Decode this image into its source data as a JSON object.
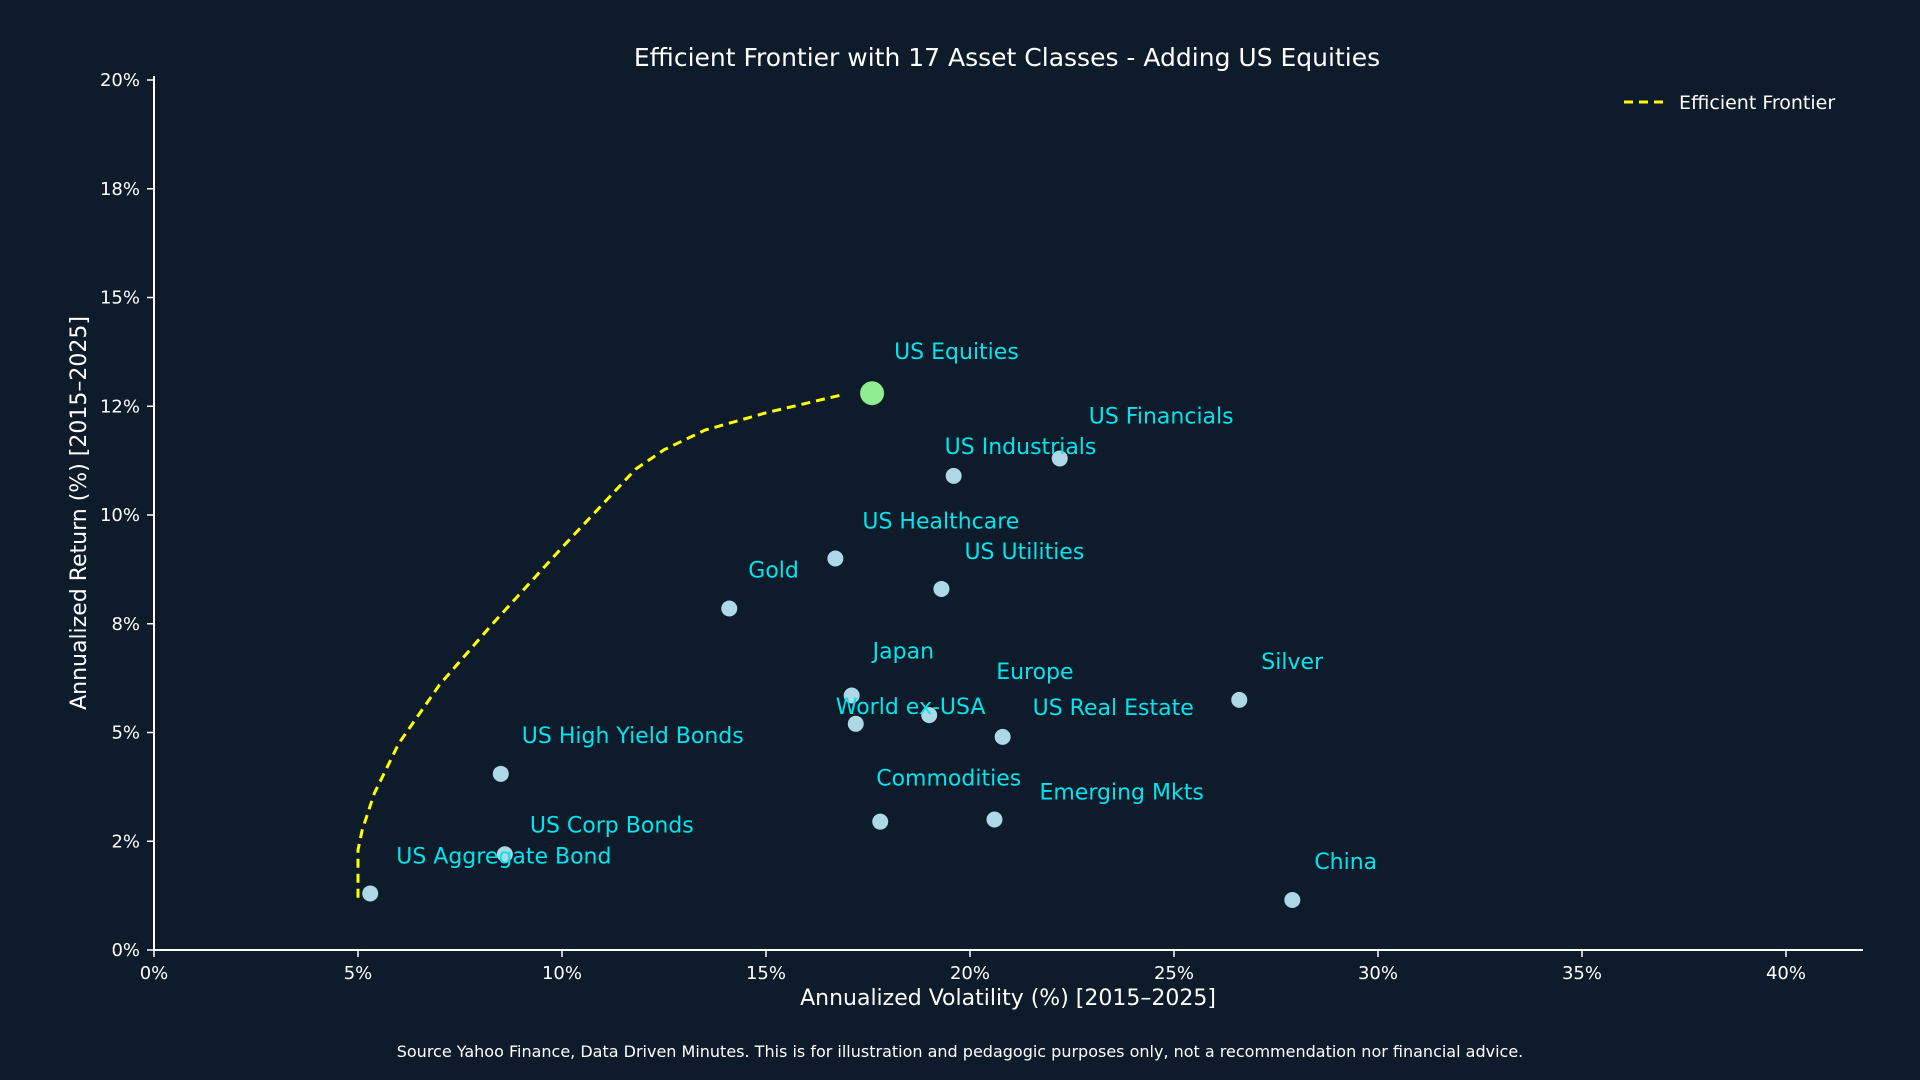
{
  "chart_data": {
    "type": "scatter",
    "title": "Efficient Frontier with 17 Asset Classes - Adding US Equities",
    "xlabel": "Annualized Volatility (%) [2015–2025]",
    "ylabel": "Annualized Return (%) [2015–2025]",
    "xlim": [
      0,
      42
    ],
    "ylim": [
      0,
      20.2
    ],
    "xticks": [
      0,
      5,
      10,
      15,
      20,
      25,
      30,
      35,
      40
    ],
    "xtick_labels": [
      "0%",
      "5%",
      "10%",
      "15%",
      "20%",
      "25%",
      "30%",
      "35%",
      "40%"
    ],
    "yticks": [
      0,
      2.5,
      5,
      7.5,
      10,
      12.5,
      15,
      17.5,
      20
    ],
    "ytick_labels": [
      "0%",
      "2%",
      "5%",
      "8%",
      "10%",
      "12%",
      "15%",
      "18%",
      "20%"
    ],
    "grid": false,
    "legend": {
      "position": "top-right",
      "entries": [
        {
          "name": "Efficient Frontier",
          "style": "dashed-line"
        }
      ]
    },
    "colors": {
      "background": "#0e1b2a",
      "point": "#add8e6",
      "highlight": "#90ee90",
      "label": "#00e5ee",
      "frontier": "#ffff00",
      "axis": "#ffffff"
    },
    "points": [
      {
        "name": "US Equities",
        "x": 17.6,
        "y": 12.8,
        "highlight": true
      },
      {
        "name": "US Financials",
        "x": 22.2,
        "y": 11.3
      },
      {
        "name": "US Industrials",
        "x": 19.6,
        "y": 10.9
      },
      {
        "name": "US Healthcare",
        "x": 16.7,
        "y": 9.0
      },
      {
        "name": "US Utilities",
        "x": 19.3,
        "y": 8.3
      },
      {
        "name": "Gold",
        "x": 14.1,
        "y": 7.85
      },
      {
        "name": "Japan",
        "x": 17.1,
        "y": 5.85
      },
      {
        "name": "World ex-USA",
        "x": 17.2,
        "y": 5.2
      },
      {
        "name": "Europe",
        "x": 19.0,
        "y": 5.4
      },
      {
        "name": "US Real Estate",
        "x": 20.8,
        "y": 4.9
      },
      {
        "name": "Silver",
        "x": 26.6,
        "y": 5.75
      },
      {
        "name": "US High Yield Bonds",
        "x": 8.5,
        "y": 4.05
      },
      {
        "name": "Commodities",
        "x": 17.8,
        "y": 2.95
      },
      {
        "name": "Emerging Mkts",
        "x": 20.6,
        "y": 3.0
      },
      {
        "name": "US Corp Bonds",
        "x": 8.6,
        "y": 2.2
      },
      {
        "name": "US Aggregate Bond",
        "x": 5.3,
        "y": 1.3
      },
      {
        "name": "China",
        "x": 27.9,
        "y": 1.15
      }
    ],
    "frontier": {
      "name": "Efficient Frontier",
      "x": [
        5.0,
        5.0,
        5.1,
        5.4,
        6.0,
        7.0,
        8.3,
        10.0,
        11.8,
        12.5,
        13.5,
        15.0,
        16.8
      ],
      "y": [
        1.2,
        2.3,
        2.75,
        3.6,
        4.75,
        6.1,
        7.5,
        9.25,
        11.05,
        11.5,
        11.95,
        12.35,
        12.75
      ]
    },
    "source": "Source Yahoo Finance, Data Driven Minutes. This is for illustration and pedagogic purposes only, not a recommendation nor financial advice."
  }
}
